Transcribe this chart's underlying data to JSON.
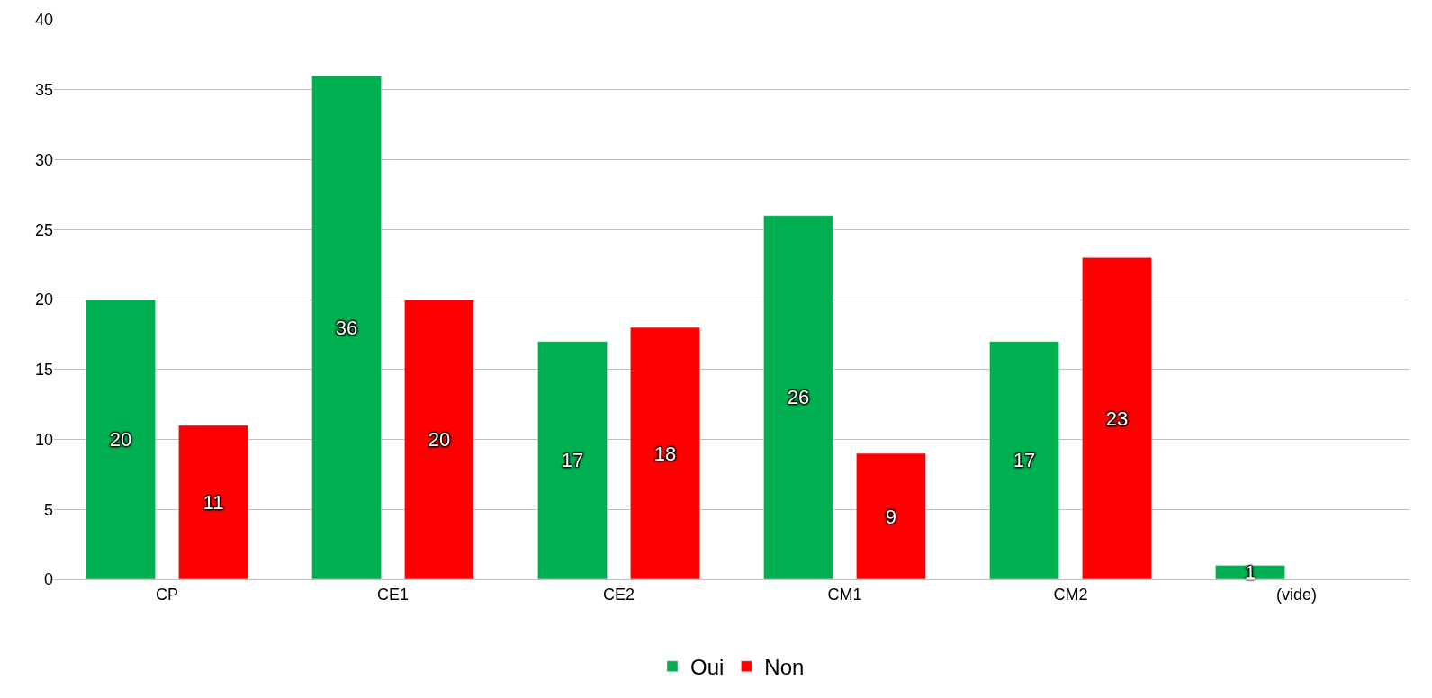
{
  "chart_data": {
    "type": "bar",
    "categories": [
      "CP",
      "CE1",
      "CE2",
      "CM1",
      "CM2",
      "(vide)"
    ],
    "series": [
      {
        "name": "Oui",
        "color": "#00b050",
        "values": [
          20,
          36,
          17,
          26,
          17,
          1
        ]
      },
      {
        "name": "Non",
        "color": "#ff0000",
        "values": [
          11,
          20,
          18,
          9,
          23,
          null
        ]
      }
    ],
    "ylim": [
      0,
      40
    ],
    "yticks": [
      0,
      5,
      10,
      15,
      20,
      25,
      30,
      35,
      40
    ],
    "grid": "y",
    "legend": "bottom",
    "data_labels": true
  }
}
